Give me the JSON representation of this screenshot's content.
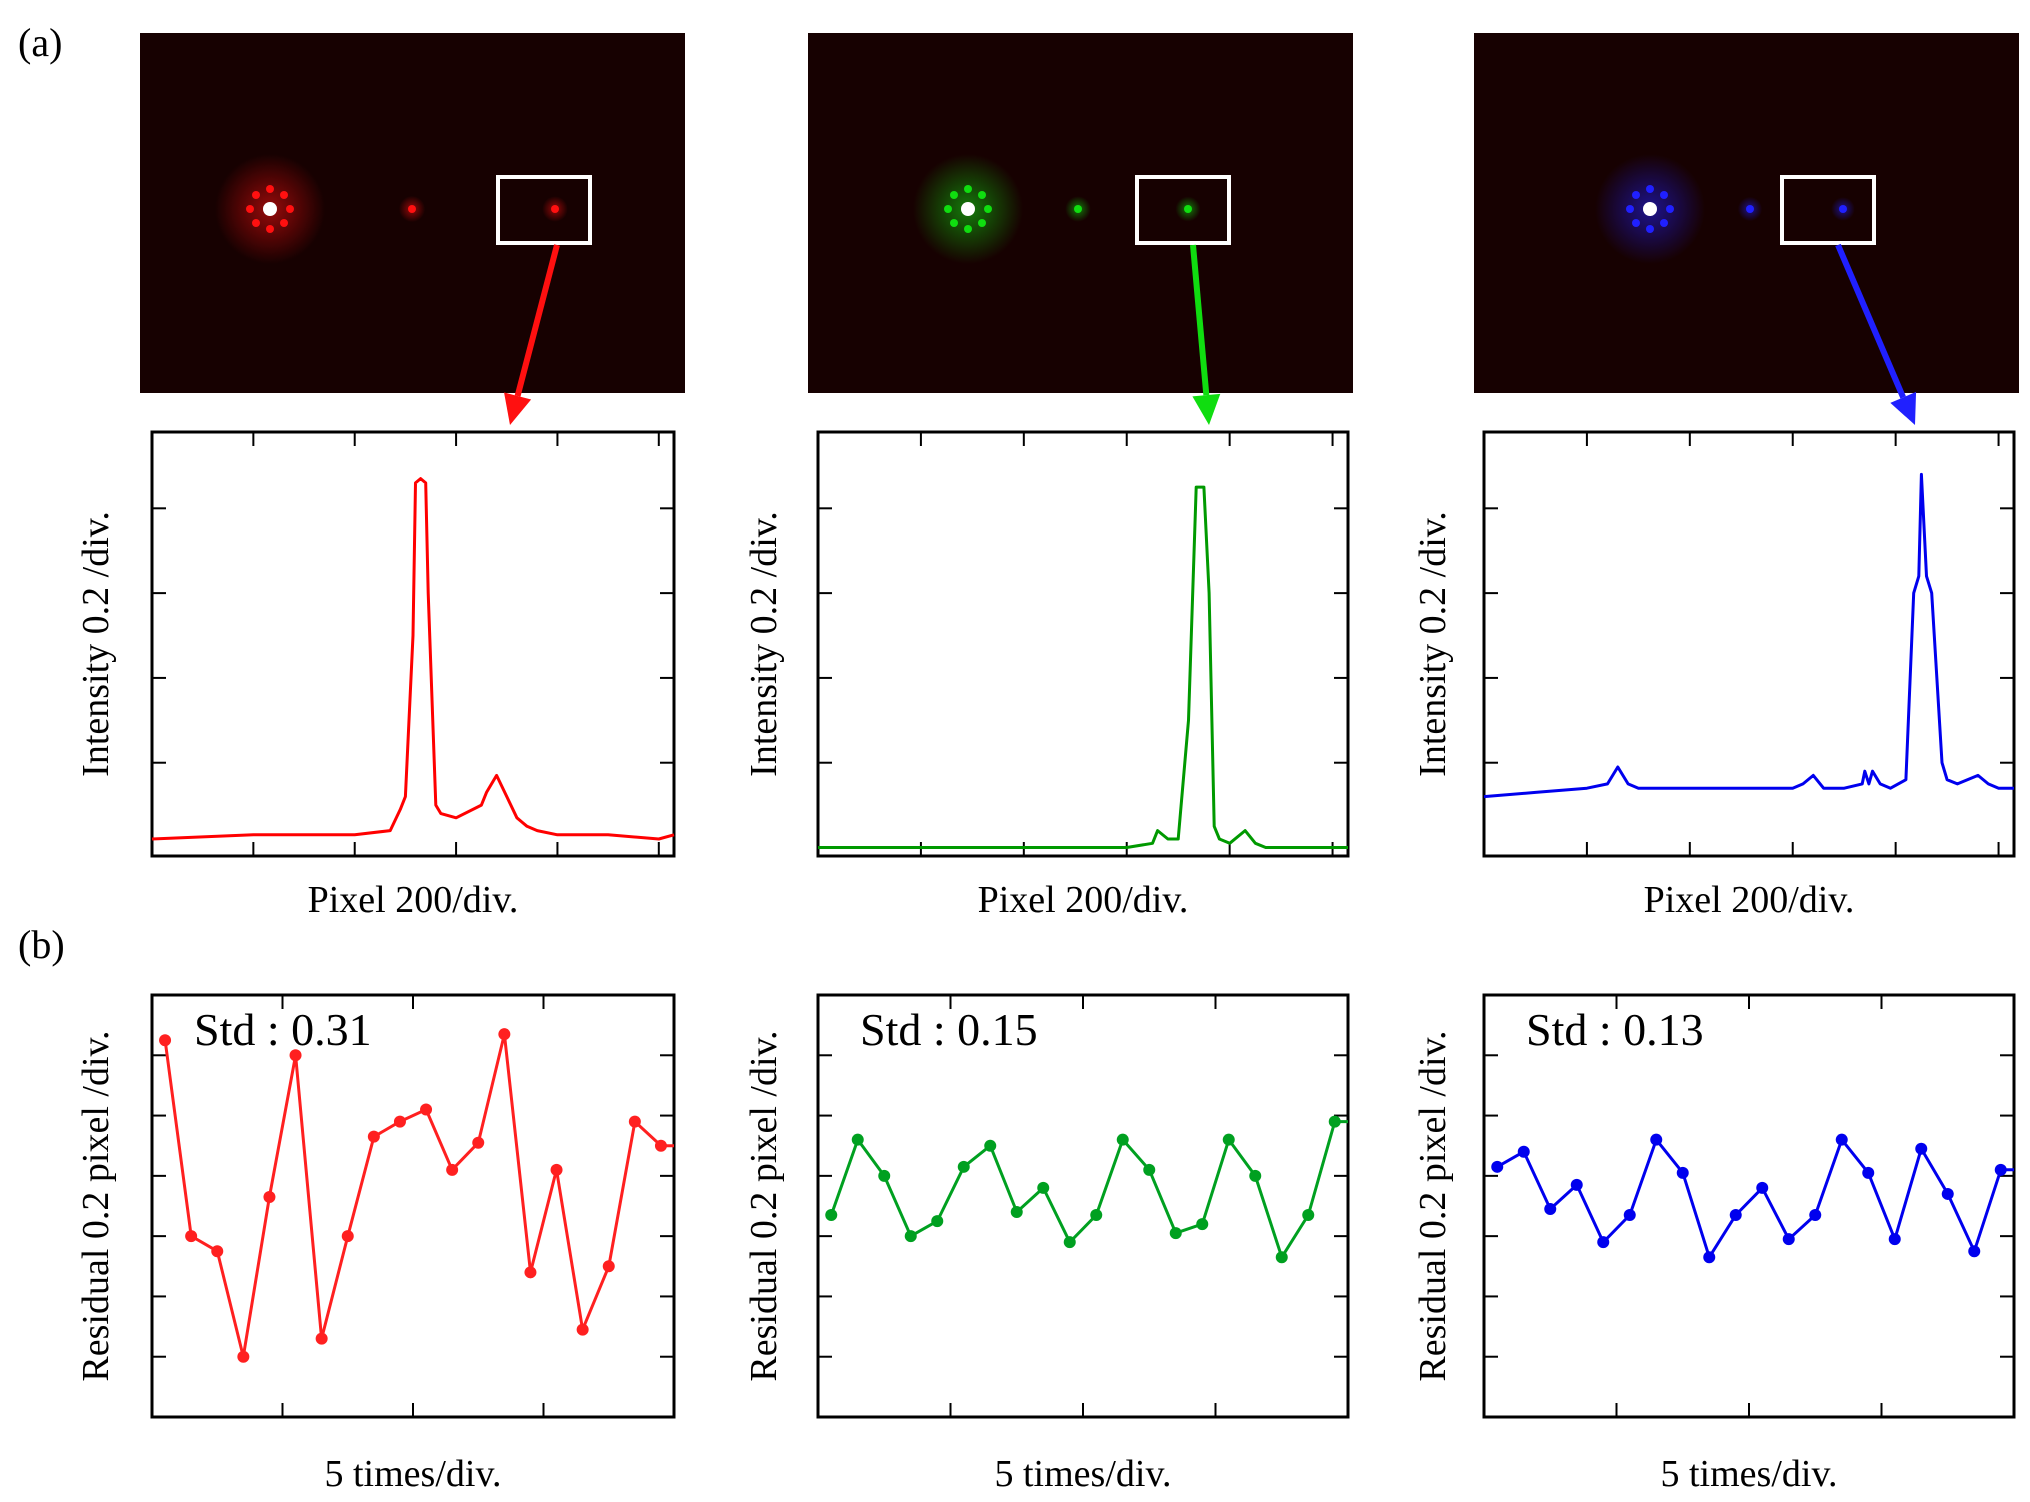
{
  "panel_labels": {
    "a": "(a)",
    "b": "(b)"
  },
  "chart_data": [
    {
      "type": "line",
      "panel": "a",
      "color": "#ff0000",
      "xlabel": "Pixel  200/div.",
      "ylabel": "Intensity  0.2 /div.",
      "xlim": [
        0,
        1030
      ],
      "ylim": [
        -0.02,
        0.98
      ],
      "peak_centers": [
        530,
        470,
        740
      ],
      "series": [
        {
          "x": [
            0,
            200,
            400,
            470,
            490,
            500,
            515,
            520,
            530,
            540,
            545,
            560,
            570,
            600,
            650,
            660,
            680,
            700,
            720,
            730,
            740,
            760,
            800,
            900,
            1000,
            1030
          ],
          "y": [
            0.02,
            0.03,
            0.03,
            0.04,
            0.09,
            0.12,
            0.5,
            0.86,
            0.87,
            0.86,
            0.6,
            0.1,
            0.08,
            0.07,
            0.1,
            0.13,
            0.17,
            0.12,
            0.07,
            0.06,
            0.05,
            0.04,
            0.03,
            0.03,
            0.02,
            0.03
          ]
        }
      ]
    },
    {
      "type": "line",
      "panel": "a",
      "color": "#009900",
      "xlabel": "Pixel  200/div.",
      "ylabel": "Intensity  0.2 /div.",
      "xlim": [
        0,
        1030
      ],
      "ylim": [
        -0.02,
        0.98
      ],
      "series": [
        {
          "x": [
            0,
            200,
            400,
            600,
            650,
            660,
            680,
            700,
            720,
            735,
            750,
            760,
            770,
            780,
            800,
            830,
            850,
            870,
            900,
            1000,
            1030
          ],
          "y": [
            0.0,
            0.0,
            0.0,
            0.0,
            0.01,
            0.04,
            0.02,
            0.02,
            0.3,
            0.85,
            0.85,
            0.6,
            0.05,
            0.02,
            0.01,
            0.04,
            0.01,
            0.0,
            0.0,
            0.0,
            0.0
          ]
        }
      ]
    },
    {
      "type": "line",
      "panel": "a",
      "color": "#0000ee",
      "xlabel": "Pixel  200/div.",
      "ylabel": "Intensity  0.2 /div.",
      "xlim": [
        0,
        1030
      ],
      "ylim": [
        -0.02,
        0.98
      ],
      "series": [
        {
          "x": [
            0,
            100,
            200,
            240,
            260,
            280,
            300,
            400,
            500,
            600,
            620,
            640,
            660,
            700,
            735,
            740,
            748,
            755,
            770,
            790,
            820,
            835,
            845,
            850,
            860,
            870,
            890,
            900,
            920,
            960,
            980,
            1000,
            1030
          ],
          "y": [
            0.12,
            0.13,
            0.14,
            0.15,
            0.19,
            0.15,
            0.14,
            0.14,
            0.14,
            0.14,
            0.15,
            0.17,
            0.14,
            0.14,
            0.15,
            0.18,
            0.15,
            0.18,
            0.15,
            0.14,
            0.16,
            0.6,
            0.64,
            0.88,
            0.64,
            0.6,
            0.2,
            0.16,
            0.15,
            0.17,
            0.15,
            0.14,
            0.14
          ]
        }
      ]
    },
    {
      "type": "line",
      "panel": "b",
      "color": "#ff2020",
      "xlabel": "5 times/div.",
      "ylabel": "Residual  0.2 pixel /div.",
      "xlim": [
        0,
        20
      ],
      "ylim": [
        0,
        1.4
      ],
      "annotation": "Std : 0.31",
      "series": [
        {
          "x": [
            0.5,
            1.5,
            2.5,
            3.5,
            4.5,
            5.5,
            6.5,
            7.5,
            8.5,
            9.5,
            10.5,
            11.5,
            12.5,
            13.5,
            14.5,
            15.5,
            16.5,
            17.5,
            18.5,
            19.5,
            20
          ],
          "y": [
            1.25,
            0.6,
            0.55,
            0.2,
            0.73,
            1.2,
            0.26,
            0.6,
            0.93,
            0.98,
            1.02,
            0.82,
            0.91,
            1.27,
            0.48,
            0.82,
            0.29,
            0.5,
            0.98,
            0.9,
            0.9
          ]
        }
      ]
    },
    {
      "type": "line",
      "panel": "b",
      "color": "#00a020",
      "xlabel": "5 times/div.",
      "ylabel": "Residual  0.2 pixel /div.",
      "xlim": [
        0,
        20
      ],
      "ylim": [
        0,
        1.4
      ],
      "annotation": "Std : 0.15",
      "series": [
        {
          "x": [
            0.5,
            1.5,
            2.5,
            3.5,
            4.5,
            5.5,
            6.5,
            7.5,
            8.5,
            9.5,
            10.5,
            11.5,
            12.5,
            13.5,
            14.5,
            15.5,
            16.5,
            17.5,
            18.5,
            19.5,
            20
          ],
          "y": [
            0.67,
            0.92,
            0.8,
            0.6,
            0.65,
            0.83,
            0.9,
            0.68,
            0.76,
            0.58,
            0.67,
            0.92,
            0.82,
            0.61,
            0.64,
            0.92,
            0.8,
            0.53,
            0.67,
            0.98,
            0.98
          ]
        }
      ]
    },
    {
      "type": "line",
      "panel": "b",
      "color": "#0000ee",
      "xlabel": "5 times/div.",
      "ylabel": "Residual  0.2 pixel /div.",
      "xlim": [
        0,
        20
      ],
      "ylim": [
        0,
        1.4
      ],
      "annotation": "Std : 0.13",
      "series": [
        {
          "x": [
            0.5,
            1.5,
            2.5,
            3.5,
            4.5,
            5.5,
            6.5,
            7.5,
            8.5,
            9.5,
            10.5,
            11.5,
            12.5,
            13.5,
            14.5,
            15.5,
            16.5,
            17.5,
            18.5,
            19.5,
            20
          ],
          "y": [
            0.83,
            0.88,
            0.69,
            0.77,
            0.58,
            0.67,
            0.92,
            0.81,
            0.53,
            0.67,
            0.76,
            0.59,
            0.67,
            0.92,
            0.81,
            0.59,
            0.89,
            0.74,
            0.55,
            0.82,
            0.82
          ]
        }
      ]
    }
  ],
  "diffraction_images": [
    {
      "color": "#ff1010",
      "spot_intensity": [
        1.0,
        0.55,
        0.5
      ]
    },
    {
      "color": "#10dd10",
      "spot_intensity": [
        1.0,
        0.5,
        0.45
      ]
    },
    {
      "color": "#2020ff",
      "spot_intensity": [
        1.0,
        0.4,
        0.35
      ]
    }
  ]
}
